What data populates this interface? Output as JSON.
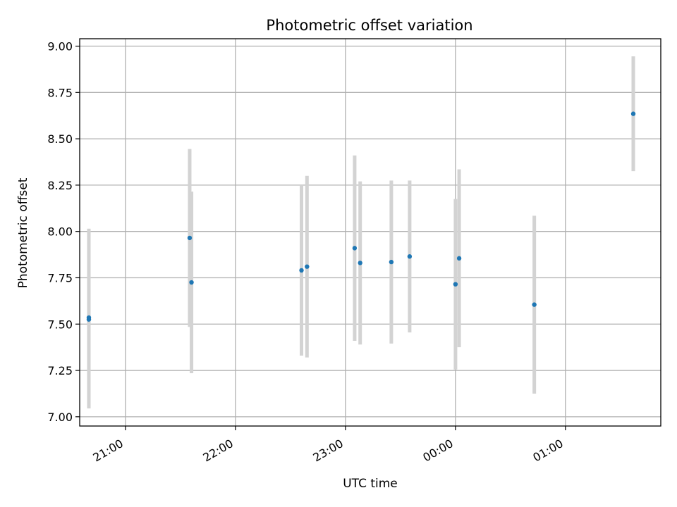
{
  "chart_data": {
    "type": "scatter",
    "title": "Photometric offset variation",
    "xlabel": "UTC time",
    "ylabel": "Photometric offset",
    "x_axis": "time",
    "xlim": [
      "20:35",
      "01:52"
    ],
    "ylim": [
      6.95,
      9.04
    ],
    "xticks": [
      "21:00",
      "22:00",
      "23:00",
      "00:00",
      "01:00"
    ],
    "yticks": [
      7.0,
      7.25,
      7.5,
      7.75,
      8.0,
      8.25,
      8.5,
      8.75,
      9.0
    ],
    "ytick_labels": [
      "7.00",
      "7.25",
      "7.50",
      "7.75",
      "8.00",
      "8.25",
      "8.50",
      "8.75",
      "9.00"
    ],
    "grid": true,
    "point_color": "#1f77b4",
    "errorbar_color": "#d3d3d3",
    "points": [
      {
        "t": "20:40",
        "y": 7.535,
        "err": 0.48
      },
      {
        "t": "20:40",
        "y": 7.525,
        "err": 0.48
      },
      {
        "t": "21:35",
        "y": 7.965,
        "err": 0.48
      },
      {
        "t": "21:36",
        "y": 7.725,
        "err": 0.49
      },
      {
        "t": "22:36",
        "y": 7.79,
        "err": 0.46
      },
      {
        "t": "22:39",
        "y": 7.81,
        "err": 0.49
      },
      {
        "t": "23:05",
        "y": 7.91,
        "err": 0.5
      },
      {
        "t": "23:08",
        "y": 7.83,
        "err": 0.44
      },
      {
        "t": "23:25",
        "y": 7.835,
        "err": 0.44
      },
      {
        "t": "23:35",
        "y": 7.865,
        "err": 0.41
      },
      {
        "t": "00:00",
        "y": 7.715,
        "err": 0.46
      },
      {
        "t": "00:02",
        "y": 7.855,
        "err": 0.48
      },
      {
        "t": "00:43",
        "y": 7.605,
        "err": 0.48
      },
      {
        "t": "01:37",
        "y": 8.635,
        "err": 0.31
      }
    ]
  }
}
